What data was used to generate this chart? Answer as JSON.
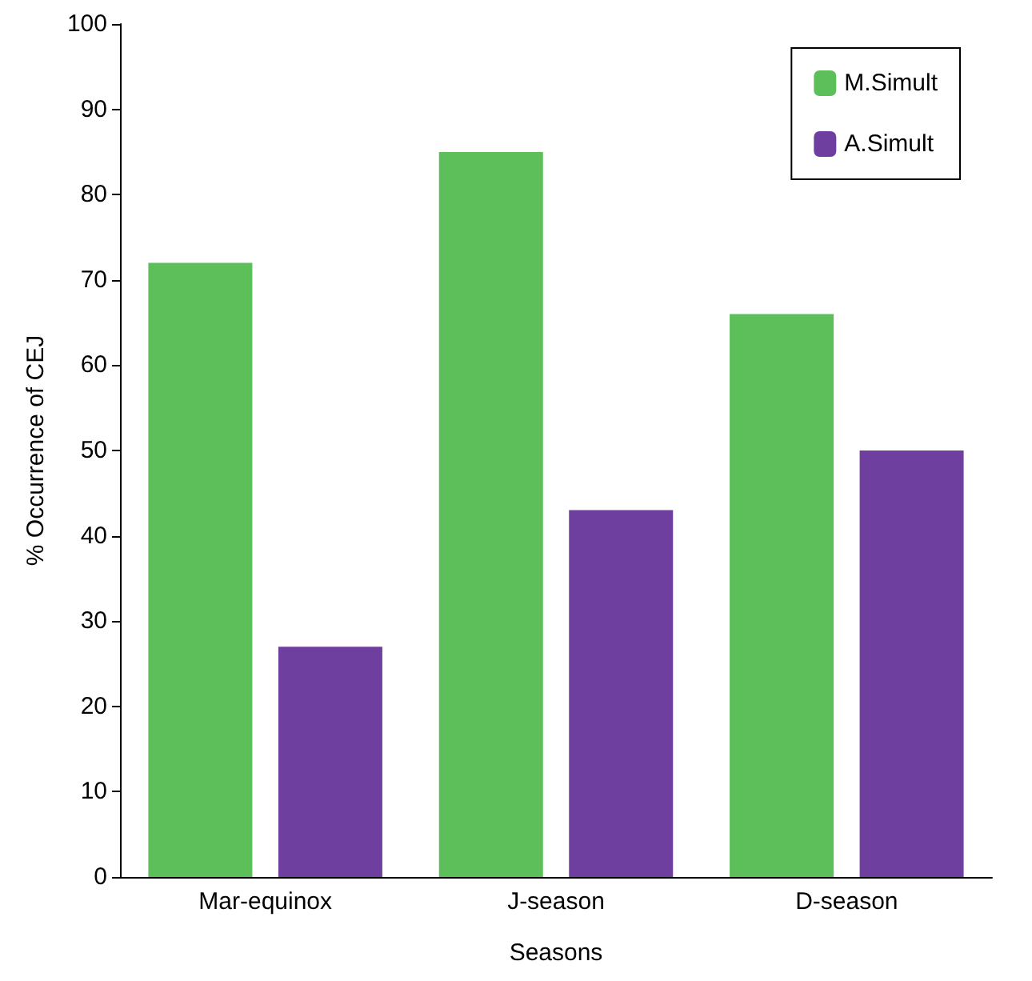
{
  "chart_data": {
    "type": "bar",
    "xlabel": "Seasons",
    "ylabel": "% Occurrence of CEJ",
    "categories": [
      "Mar-equinox",
      "J-season",
      "D-season"
    ],
    "series": [
      {
        "name": "M.Simult",
        "color": "#5cbf5a",
        "values": [
          72,
          85,
          66
        ]
      },
      {
        "name": "A.Simult",
        "color": "#6f3fa0",
        "values": [
          27,
          43,
          50
        ]
      }
    ],
    "ylim": [
      0,
      100
    ],
    "yticks": [
      0,
      10,
      20,
      30,
      40,
      50,
      60,
      70,
      80,
      90,
      100
    ],
    "grid": false,
    "legend": "top right"
  }
}
